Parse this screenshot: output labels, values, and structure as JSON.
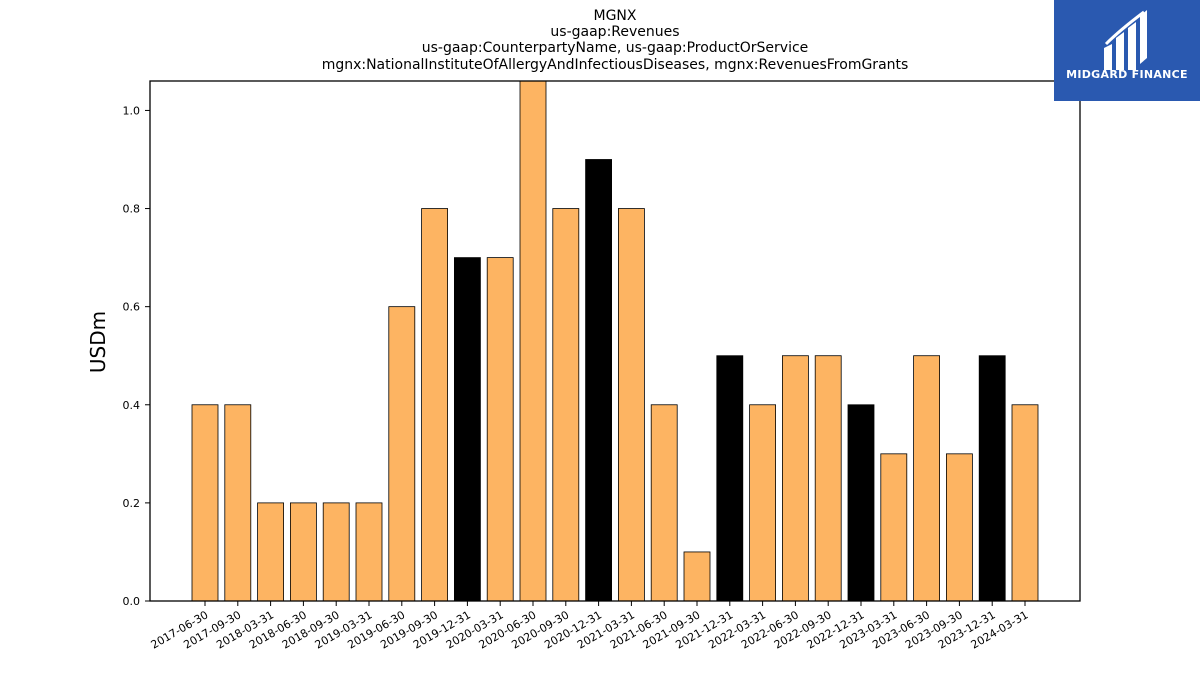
{
  "chart_data": {
    "type": "bar",
    "title_lines": [
      "MGNX",
      "us-gaap:Revenues",
      "us-gaap:CounterpartyName, us-gaap:ProductOrService",
      "mgnx:NationalInstituteOfAllergyAndInfectiousDiseases, mgnx:RevenuesFromGrants"
    ],
    "xlabel": "",
    "ylabel": "USDm",
    "categories": [
      "2017-06-30",
      "2017-09-30",
      "2018-03-31",
      "2018-06-30",
      "2018-09-30",
      "2019-03-31",
      "2019-06-30",
      "2019-09-30",
      "2019-12-31",
      "2020-03-31",
      "2020-06-30",
      "2020-09-30",
      "2020-12-31",
      "2021-03-31",
      "2021-06-30",
      "2021-09-30",
      "2021-12-31",
      "2022-03-31",
      "2022-06-30",
      "2022-09-30",
      "2022-12-31",
      "2023-03-31",
      "2023-06-30",
      "2023-09-30",
      "2023-12-31",
      "2024-03-31"
    ],
    "values": [
      0.4,
      0.4,
      0.2,
      0.2,
      0.2,
      0.2,
      0.6,
      0.8,
      0.7,
      0.7,
      1.1,
      0.8,
      0.9,
      0.8,
      0.4,
      0.1,
      0.5,
      0.4,
      0.5,
      0.5,
      0.4,
      0.3,
      0.5,
      0.3,
      0.5,
      0.4
    ],
    "bar_colors": [
      "#fdb462",
      "#fdb462",
      "#fdb462",
      "#fdb462",
      "#fdb462",
      "#fdb462",
      "#fdb462",
      "#fdb462",
      "#000000",
      "#fdb462",
      "#fdb462",
      "#fdb462",
      "#000000",
      "#fdb462",
      "#fdb462",
      "#fdb462",
      "#000000",
      "#fdb462",
      "#fdb462",
      "#fdb462",
      "#000000",
      "#fdb462",
      "#fdb462",
      "#fdb462",
      "#000000",
      "#fdb462"
    ],
    "yticks": [
      "0.0",
      "0.2",
      "0.4",
      "0.6",
      "0.8",
      "1.0"
    ],
    "ylim": [
      0,
      1.06
    ],
    "grid": false,
    "legend": "none",
    "colors": {
      "default_bar": "#fdb462",
      "highlight_bar": "#000000",
      "bar_edge": "#000000"
    }
  },
  "logo": {
    "text": "MIDGARD FINANCE",
    "background": "#2a59b0",
    "icon": "midgard-m-logo-icon"
  }
}
